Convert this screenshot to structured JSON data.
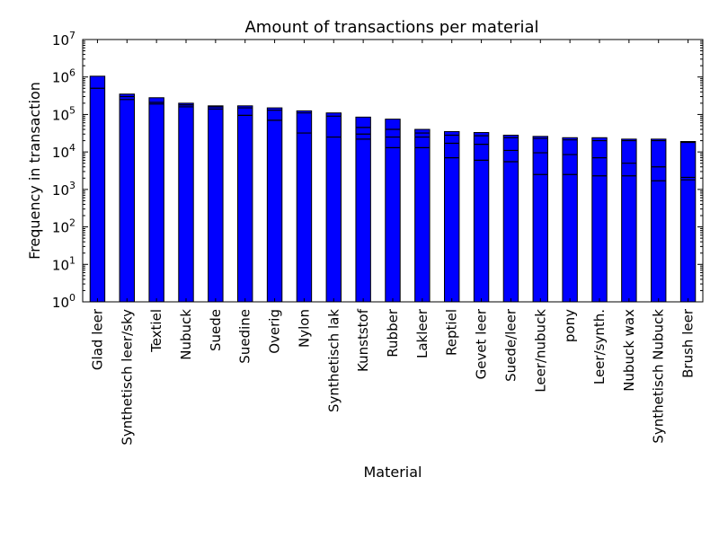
{
  "chart_data": {
    "type": "bar",
    "title": "Amount of transactions per material",
    "xlabel": "Material",
    "ylabel": "Frequency in transaction",
    "yscale": "log",
    "ylim": [
      1,
      10000000
    ],
    "yticks": [
      {
        "value": 1,
        "base": "10",
        "exp": "0"
      },
      {
        "value": 10,
        "base": "10",
        "exp": "1"
      },
      {
        "value": 100,
        "base": "10",
        "exp": "2"
      },
      {
        "value": 1000,
        "base": "10",
        "exp": "3"
      },
      {
        "value": 10000,
        "base": "10",
        "exp": "4"
      },
      {
        "value": 100000,
        "base": "10",
        "exp": "5"
      },
      {
        "value": 1000000,
        "base": "10",
        "exp": "6"
      },
      {
        "value": 10000000,
        "base": "10",
        "exp": "7"
      }
    ],
    "bar_color": "#0000ff",
    "edge_color": "#000000",
    "categories": [
      "Glad leer",
      "Synthetisch leer/sky",
      "Textiel",
      "Nubuck",
      "Suede",
      "Suedine",
      "Overig",
      "Nylon",
      "Synthetisch lak",
      "Kunststof",
      "Rubber",
      "Lakleer",
      "Reptiel",
      "Gevet leer",
      "Suede/leer",
      "Leer/nubuck",
      "pony",
      "Leer/synth.",
      "Nubuck wax",
      "Synthetisch Nubuck",
      "Brush leer"
    ],
    "values": [
      1050000,
      350000,
      280000,
      200000,
      170000,
      170000,
      150000,
      125000,
      110000,
      85000,
      75000,
      40000,
      35000,
      33000,
      28000,
      26000,
      24000,
      24000,
      22000,
      22000,
      19000
    ],
    "segment_lines": [
      [
        500000
      ],
      [
        250000,
        300000
      ],
      [
        190000,
        210000
      ],
      [
        160000,
        180000
      ],
      [
        140000,
        160000
      ],
      [
        95000,
        150000
      ],
      [
        70000,
        130000
      ],
      [
        32000,
        110000
      ],
      [
        25000,
        90000
      ],
      [
        22000,
        30000,
        45000
      ],
      [
        13000,
        25000,
        40000
      ],
      [
        13000,
        25000,
        32000
      ],
      [
        7000,
        17000,
        28000
      ],
      [
        6000,
        16000,
        27000
      ],
      [
        5500,
        11000,
        24000
      ],
      [
        2500,
        9500,
        23000
      ],
      [
        2500,
        8500,
        21000
      ],
      [
        2300,
        7000,
        20000
      ],
      [
        2300,
        5000,
        20000
      ],
      [
        1700,
        4000,
        20000
      ],
      [
        1800,
        2100,
        18000
      ]
    ]
  }
}
